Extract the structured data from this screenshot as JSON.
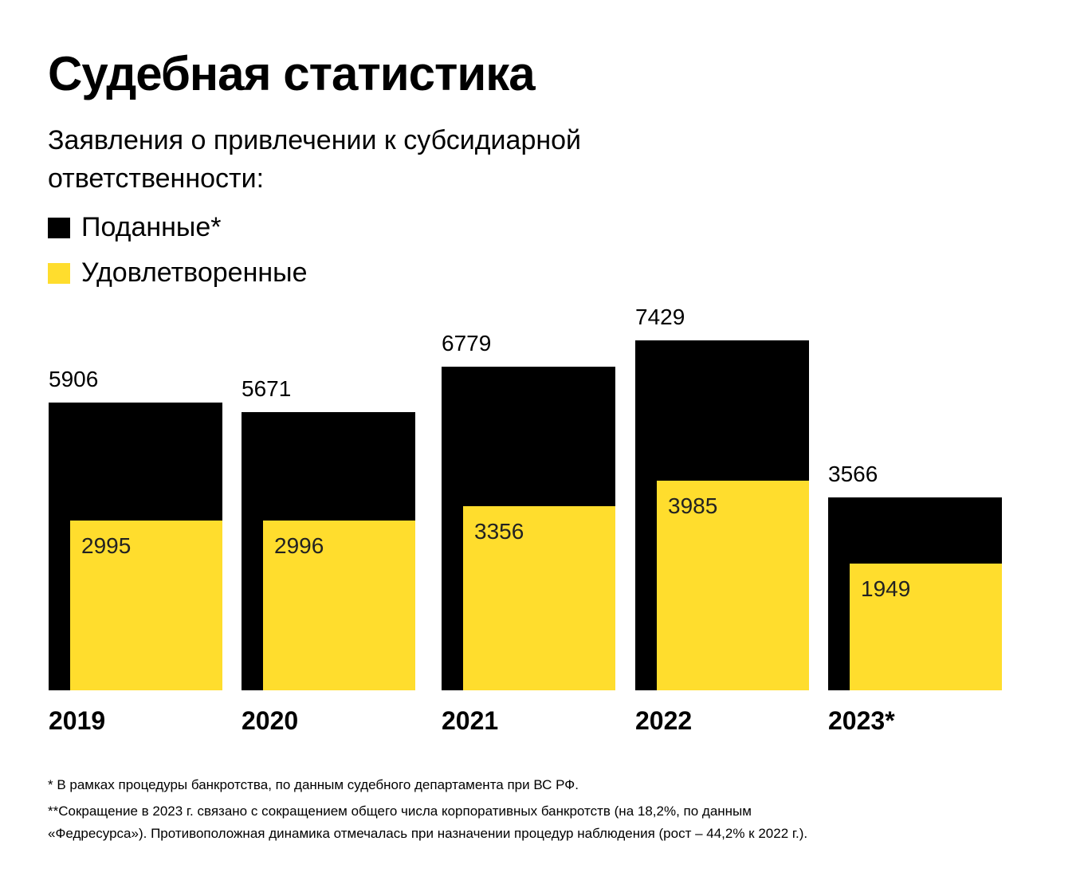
{
  "title": "Судебная статистика",
  "subtitle": "Заявления о привлечении к субсидиарной ответственности:",
  "colors": {
    "filed": "#000000",
    "satisfied": "#FFDD2D"
  },
  "chart_data": {
    "type": "bar",
    "categories": [
      "2019",
      "2020",
      "2021",
      "2022",
      "2023*"
    ],
    "series": [
      {
        "name": "Поданные*",
        "values": [
          5906,
          5671,
          6779,
          7429,
          3566
        ]
      },
      {
        "name": "Удовлетворенные",
        "values": [
          2995,
          2996,
          3356,
          3985,
          1949
        ]
      }
    ],
    "legend_placement": "top-left",
    "grid": false,
    "overlapping_bars": true
  },
  "footnotes": [
    "* В рамках процедуры банкротства, по данным судебного департамента при ВС РФ.",
    "**Сокращение в 2023 г. связано с сокращением общего числа корпоративных банкротств (на 18,2%, по данным «Федресурса»). Противоположная динамика отмечалась при назначении процедур наблюдения (рост – 44,2% к 2022 г.)."
  ]
}
